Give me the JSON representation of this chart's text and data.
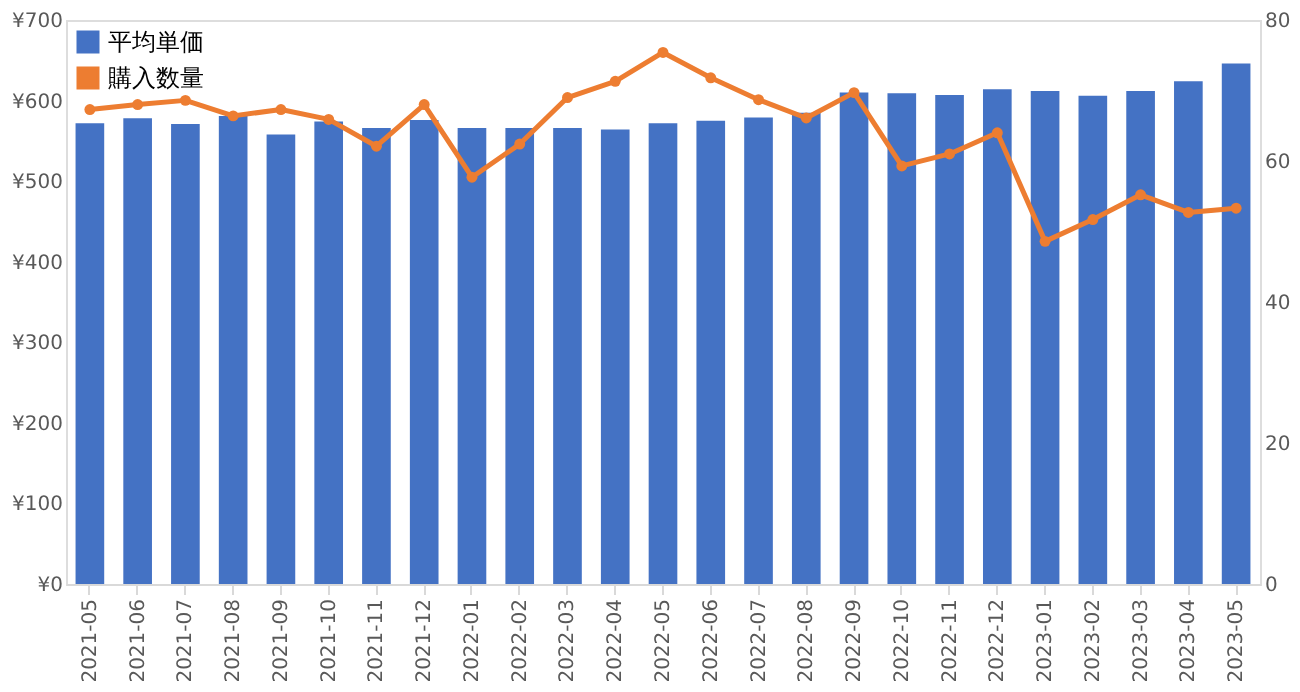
{
  "chart_data": {
    "type": "bar",
    "categories": [
      "2021-05",
      "2021-06",
      "2021-07",
      "2021-08",
      "2021-09",
      "2021-10",
      "2021-11",
      "2021-12",
      "2022-01",
      "2022-02",
      "2022-03",
      "2022-04",
      "2022-05",
      "2022-06",
      "2022-07",
      "2022-08",
      "2022-09",
      "2022-10",
      "2022-11",
      "2022-12",
      "2023-01",
      "2023-02",
      "2023-03",
      "2023-04",
      "2023-05"
    ],
    "series": [
      {
        "name": "平均単価",
        "color": "#4472c4",
        "values": [
          572,
          578,
          571,
          581,
          558,
          574,
          566,
          576,
          566,
          566,
          566,
          564,
          572,
          575,
          579,
          585,
          610,
          609,
          607,
          614,
          612,
          606,
          612,
          624,
          646
        ]
      },
      {
        "name": "購入数量",
        "type": "line",
        "axis": "y2",
        "color": "#ed7d31",
        "marker": "circle",
        "values": [
          67.3,
          68,
          68.6,
          66.4,
          67.3,
          65.9,
          62.1,
          68,
          57.7,
          62.4,
          69,
          71.3,
          75.4,
          71.8,
          68.7,
          66.1,
          69.7,
          59.3,
          61,
          64,
          48.6,
          51.7,
          55.2,
          52.7,
          53.3
        ]
      }
    ],
    "ylim": [
      0,
      700
    ],
    "yticks": [
      {
        "value": 0,
        "label": "¥0"
      },
      {
        "value": 100,
        "label": "¥100"
      },
      {
        "value": 200,
        "label": "¥200"
      },
      {
        "value": 300,
        "label": "¥300"
      },
      {
        "value": 400,
        "label": "¥400"
      },
      {
        "value": 500,
        "label": "¥500"
      },
      {
        "value": 600,
        "label": "¥600"
      },
      {
        "value": 700,
        "label": "¥700"
      }
    ],
    "y2lim": [
      0,
      80
    ],
    "y2ticks": [
      0,
      20,
      40,
      60,
      80
    ],
    "grid": false,
    "legend": "top left"
  }
}
